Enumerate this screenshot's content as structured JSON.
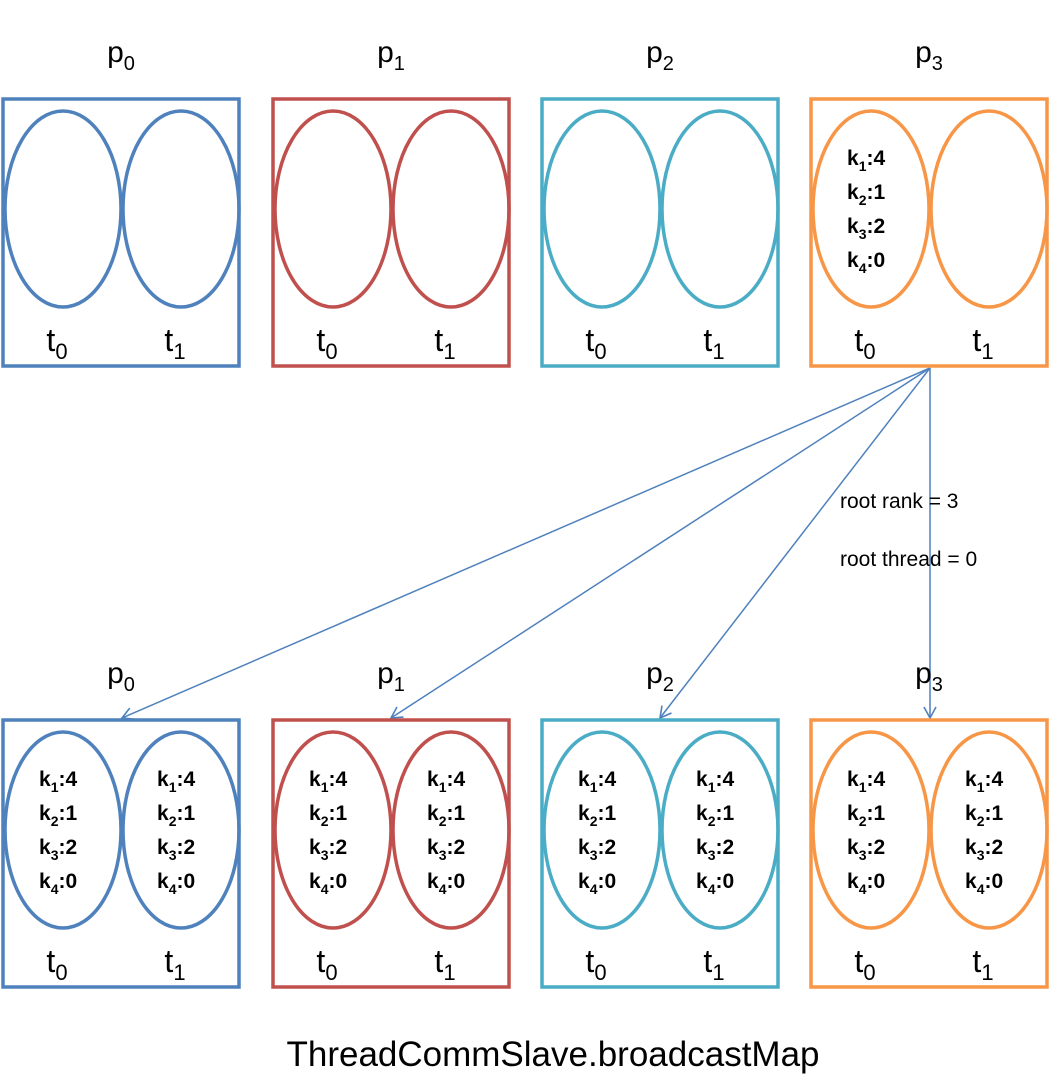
{
  "colors": {
    "p0": "#4f81bd",
    "p1": "#c0504d",
    "p2": "#4bacc6",
    "p3": "#f79646",
    "arrow": "#4f81bd"
  },
  "process_prefix": "p",
  "thread_prefix": "t",
  "before": {
    "processes": [
      {
        "rank": "0",
        "threads": [
          {
            "id": "0",
            "map": []
          },
          {
            "id": "1",
            "map": []
          }
        ]
      },
      {
        "rank": "1",
        "threads": [
          {
            "id": "0",
            "map": []
          },
          {
            "id": "1",
            "map": []
          }
        ]
      },
      {
        "rank": "2",
        "threads": [
          {
            "id": "0",
            "map": []
          },
          {
            "id": "1",
            "map": []
          }
        ]
      },
      {
        "rank": "3",
        "threads": [
          {
            "id": "0",
            "map": [
              {
                "key": "k",
                "sub": "1",
                "value": ":4"
              },
              {
                "key": "k",
                "sub": "2",
                "value": ":1"
              },
              {
                "key": "k",
                "sub": "3",
                "value": ":2"
              },
              {
                "key": "k",
                "sub": "4",
                "value": ":0"
              }
            ]
          },
          {
            "id": "1",
            "map": []
          }
        ]
      }
    ]
  },
  "after": {
    "processes": [
      {
        "rank": "0"
      },
      {
        "rank": "1"
      },
      {
        "rank": "2"
      },
      {
        "rank": "3"
      }
    ],
    "map": [
      {
        "key": "k",
        "sub": "1",
        "value": ":4"
      },
      {
        "key": "k",
        "sub": "2",
        "value": ":1"
      },
      {
        "key": "k",
        "sub": "3",
        "value": ":2"
      },
      {
        "key": "k",
        "sub": "4",
        "value": ":0"
      }
    ]
  },
  "annotations": {
    "root_rank": "root rank = 3",
    "root_thread": "root thread = 0"
  },
  "title": "ThreadCommSlave.broadcastMap"
}
